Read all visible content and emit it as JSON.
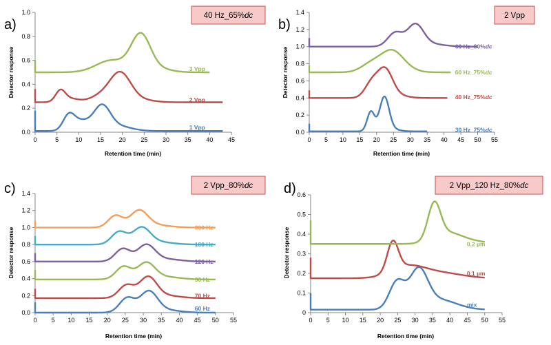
{
  "colors": {
    "blue": "#4a7ebb",
    "red": "#be4b48",
    "green": "#98b954",
    "purple": "#7d60a0",
    "teal": "#46aac5",
    "orange": "#f59d56",
    "title_bg": "#f7c9c9",
    "title_border": "#c0504d"
  },
  "chart_data": [
    {
      "panel": "a)",
      "title_parts": [
        {
          "text": "40 Hz_65%",
          "italic": false
        },
        {
          "text": "dc",
          "italic": true
        }
      ],
      "type": "line",
      "xlabel": "Retention time (min)",
      "ylabel": "Detector response",
      "xlim": [
        0,
        45
      ],
      "xticks": [
        0,
        5,
        10,
        15,
        20,
        25,
        30,
        35,
        40,
        45
      ],
      "ylim": [
        0,
        1.0
      ],
      "yticks": [
        "0.0",
        "0.2",
        "0.4",
        "0.6",
        "0.8",
        "1.0"
      ],
      "series": [
        {
          "name": "1 Vpp",
          "color": "blue",
          "x_end": 43,
          "base": 0.01,
          "spike": {
            "x": 0,
            "y": 0.18
          },
          "peaks": [
            [
              7.7,
              0.12,
              1.3
            ],
            [
              10.5,
              0.08,
              2.0
            ],
            [
              15.3,
              0.2,
              1.9
            ],
            [
              19,
              0.04,
              3
            ]
          ],
          "label_x": 0.75,
          "label_y": 0.04
        },
        {
          "name": "2 Vpp",
          "color": "red",
          "x_end": 43,
          "base": 0.25,
          "spike": {
            "x": 0,
            "y": 0.36
          },
          "peaks": [
            [
              5.8,
              0.09,
              1.1
            ],
            [
              8,
              0.03,
              2
            ],
            [
              15,
              0.05,
              2.4
            ],
            [
              19.5,
              0.24,
              2.4
            ],
            [
              24,
              0.02,
              3
            ]
          ],
          "label_x": 0.75,
          "label_y": 0.27
        },
        {
          "name": "3 Vpp",
          "color": "green",
          "x_end": 40,
          "base": 0.5,
          "spike": {
            "x": 0,
            "y": 0.6
          },
          "peaks": [
            [
              17.5,
              0.1,
              3.5
            ],
            [
              24.2,
              0.3,
              2.2
            ],
            [
              28,
              0.03,
              3
            ]
          ],
          "label_x": 0.75,
          "label_y": 0.53
        }
      ]
    },
    {
      "panel": "b)",
      "title_parts": [
        {
          "text": "2 Vpp",
          "italic": false
        }
      ],
      "type": "line",
      "xlabel": "Retention time (min)",
      "ylabel": "Detector response",
      "xlim": [
        0,
        55
      ],
      "xticks": [
        0,
        5,
        10,
        15,
        20,
        25,
        30,
        35,
        40,
        45,
        50,
        55
      ],
      "ylim": [
        0,
        1.4
      ],
      "yticks": [
        "0.0",
        "0.2",
        "0.4",
        "0.6",
        "0.8",
        "1.0",
        "1.2",
        "1.4"
      ],
      "series": [
        {
          "name": "30 Hz_75%",
          "label_italic": "dc",
          "color": "blue",
          "x_end": 35,
          "base": 0.01,
          "spike": {
            "x": 0,
            "y": 0.1
          },
          "peaks": [
            [
              18.3,
              0.23,
              1.1
            ],
            [
              22.3,
              0.4,
              1.4
            ],
            [
              25,
              0.02,
              2
            ]
          ],
          "label_x": 0.75,
          "label_y": 0.03
        },
        {
          "name": "40 Hz_75%",
          "label_italic": "dc",
          "color": "red",
          "x_end": 41,
          "base": 0.4,
          "spike": {
            "x": 0,
            "y": 0.49
          },
          "peaks": [
            [
              18.5,
              0.17,
              2.0
            ],
            [
              22.5,
              0.32,
              2.2
            ],
            [
              26,
              0.03,
              3
            ]
          ],
          "label_x": 0.75,
          "label_y": 0.41
        },
        {
          "name": "60 Hz_75%",
          "label_italic": "dc",
          "color": "green",
          "x_end": 42,
          "base": 0.7,
          "spike": {
            "x": 0,
            "y": 0.78
          },
          "peaks": [
            [
              18.5,
              0.1,
              3.0
            ],
            [
              24.5,
              0.24,
              3.2
            ],
            [
              29,
              0.03,
              3
            ]
          ],
          "label_x": 0.75,
          "label_y": 0.7
        },
        {
          "name": "60 Hz_80%",
          "label_italic": "dc",
          "color": "purple",
          "x_end": 50,
          "base": 1.0,
          "spike": {
            "x": 0,
            "y": 1.1
          },
          "peaks": [
            [
              25.5,
              0.16,
              2.2
            ],
            [
              31.5,
              0.25,
              2.4
            ],
            [
              36,
              0.03,
              4
            ]
          ],
          "label_x": 0.75,
          "label_y": 1.0
        }
      ]
    },
    {
      "panel": "c)",
      "title_parts": [
        {
          "text": "2 Vpp_80%",
          "italic": false
        },
        {
          "text": "dc",
          "italic": true
        }
      ],
      "type": "line",
      "xlabel": "Retention time (min)",
      "ylabel": "Detector response",
      "xlim": [
        0,
        55
      ],
      "xticks": [
        0,
        5,
        10,
        15,
        20,
        25,
        30,
        35,
        40,
        45,
        50,
        55
      ],
      "ylim": [
        0,
        1.4
      ],
      "yticks": [
        "0.0",
        "0.2",
        "0.4",
        "0.6",
        "0.8",
        "1.0",
        "1.2",
        "1.4"
      ],
      "series": [
        {
          "name": "60 Hz",
          "color": "blue",
          "x_end": 50,
          "base": 0.0,
          "spike": {
            "x": 0,
            "y": 0.12
          },
          "peaks": [
            [
              25.5,
              0.17,
              2.1
            ],
            [
              31.5,
              0.24,
              2.4
            ],
            [
              36,
              0.03,
              4
            ]
          ],
          "label_x": 0.77,
          "label_y": 0.05
        },
        {
          "name": "70 Hz",
          "color": "red",
          "x_end": 50,
          "base": 0.17,
          "spike": {
            "x": 0,
            "y": 0.28
          },
          "peaks": [
            [
              25.3,
              0.15,
              2.1
            ],
            [
              31.3,
              0.24,
              2.4
            ],
            [
              36,
              0.03,
              4
            ]
          ],
          "label_x": 0.77,
          "label_y": 0.2
        },
        {
          "name": "90 Hz",
          "color": "green",
          "x_end": 50,
          "base": 0.39,
          "spike": {
            "x": 0,
            "y": 0.5
          },
          "peaks": [
            [
              24.5,
              0.15,
              2.1
            ],
            [
              30.8,
              0.19,
              2.4
            ],
            [
              36,
              0.03,
              4
            ]
          ],
          "label_x": 0.77,
          "label_y": 0.39
        },
        {
          "name": "120 Hz",
          "color": "purple",
          "x_end": 50,
          "base": 0.6,
          "spike": {
            "x": 0,
            "y": 0.7
          },
          "peaks": [
            [
              24.3,
              0.15,
              2.1
            ],
            [
              30.8,
              0.19,
              2.4
            ],
            [
              36,
              0.03,
              4
            ]
          ],
          "label_x": 0.77,
          "label_y": 0.6
        },
        {
          "name": "180 Hz",
          "color": "teal",
          "x_end": 50,
          "base": 0.8,
          "spike": {
            "x": 0,
            "y": 0.9
          },
          "peaks": [
            [
              23.3,
              0.15,
              2.1
            ],
            [
              29.5,
              0.19,
              2.4
            ],
            [
              34,
              0.03,
              4
            ]
          ],
          "label_x": 0.77,
          "label_y": 0.8
        },
        {
          "name": "300 Hz",
          "color": "orange",
          "x_end": 50,
          "base": 1.0,
          "spike": {
            "x": 0,
            "y": 1.08
          },
          "peaks": [
            [
              22.3,
              0.14,
              2.0
            ],
            [
              28.8,
              0.19,
              2.4
            ],
            [
              33,
              0.03,
              4
            ]
          ],
          "label_x": 0.77,
          "label_y": 1.0
        }
      ]
    },
    {
      "panel": "d)",
      "title_parts": [
        {
          "text": "2 Vpp_120 Hz_80%",
          "italic": false
        },
        {
          "text": "dc",
          "italic": true
        }
      ],
      "type": "line",
      "xlabel": "Retention time (min)",
      "ylabel": "Detector response",
      "xlim": [
        0,
        55
      ],
      "xticks": [
        0,
        5,
        10,
        15,
        20,
        25,
        30,
        35,
        40,
        45,
        50,
        55
      ],
      "ylim": [
        0,
        0.6
      ],
      "yticks": [
        "0",
        "0.1",
        "0.2",
        "0.3",
        "0.4",
        "0.5",
        "0.6"
      ],
      "series": [
        {
          "name": "mix",
          "color": "blue",
          "x_end": 50,
          "base": 0.015,
          "spike": {
            "x": 0,
            "y": 0.1
          },
          "peaks": [
            [
              24.8,
              0.14,
              2.2
            ],
            [
              31,
              0.19,
              2.6
            ],
            [
              37,
              0.05,
              5
            ]
          ],
          "label_x": 0.78,
          "label_y": 0.04
        },
        {
          "name": "0.1 µm",
          "color": "red",
          "x_end": 50,
          "base": 0.175,
          "spike": {
            "x": 0,
            "y": 0.28
          },
          "peaks": [
            [
              23.6,
              0.15,
              1.6
            ],
            [
              28,
              0.06,
              5
            ],
            [
              38,
              0.025,
              6
            ]
          ],
          "label_x": 0.78,
          "label_y": 0.2
        },
        {
          "name": "0.2 µm",
          "color": "green",
          "x_end": 50,
          "base": 0.35,
          "spike": {
            "x": 0,
            "y": 0.47
          },
          "peaks": [
            [
              35.5,
              0.18,
              1.8
            ],
            [
              39,
              0.05,
              4
            ],
            [
              45,
              0.015,
              5
            ]
          ],
          "label_x": 0.78,
          "label_y": 0.35
        }
      ]
    }
  ]
}
